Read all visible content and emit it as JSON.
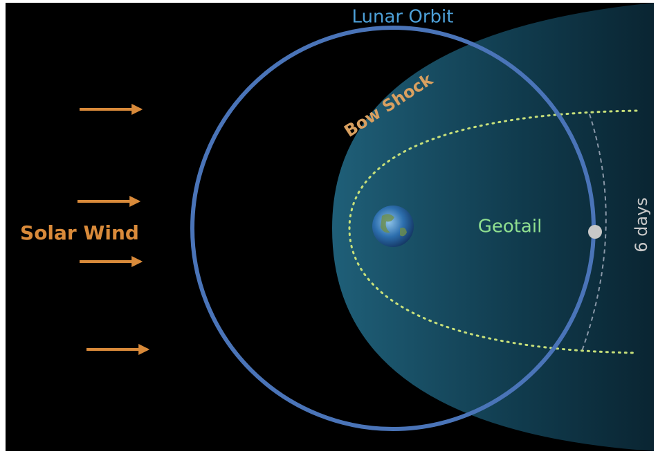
{
  "labels": {
    "lunar_orbit": "Lunar Orbit",
    "bow_shock": "Bow Shock",
    "solar_wind": "Solar Wind",
    "geotail": "Geotail",
    "duration": "6 days"
  }
}
